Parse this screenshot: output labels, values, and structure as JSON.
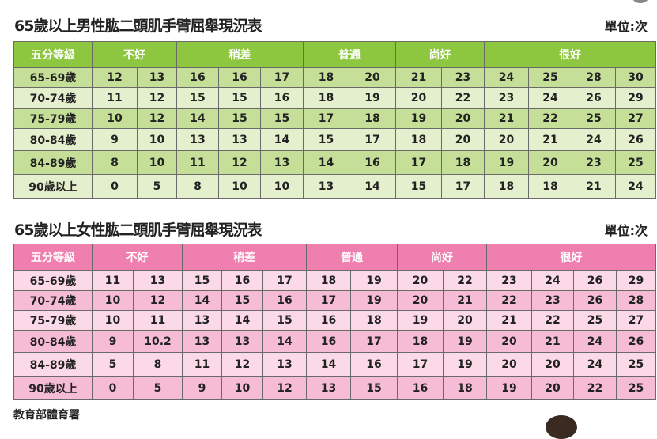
{
  "tables": [
    {
      "title": "65歲以上男性肱二頭肌手臂屈舉現況表",
      "unit": "單位:次",
      "theme": "green",
      "header": [
        "五分等級",
        "不好",
        "稍差",
        "普通",
        "尚好",
        "很好"
      ],
      "spans": [
        1,
        2,
        3,
        2,
        2,
        4
      ],
      "rows": [
        {
          "age": "65-69歲",
          "values": [
            "12",
            "13",
            "16",
            "16",
            "17",
            "18",
            "20",
            "21",
            "23",
            "24",
            "25",
            "28",
            "30"
          ]
        },
        {
          "age": "70-74歲",
          "values": [
            "11",
            "12",
            "15",
            "15",
            "16",
            "18",
            "19",
            "20",
            "22",
            "23",
            "24",
            "26",
            "29"
          ]
        },
        {
          "age": "75-79歲",
          "values": [
            "10",
            "12",
            "14",
            "15",
            "15",
            "17",
            "18",
            "19",
            "20",
            "21",
            "22",
            "25",
            "27"
          ]
        },
        {
          "age": "80-84歲",
          "values": [
            "9",
            "10",
            "13",
            "13",
            "14",
            "15",
            "17",
            "18",
            "20",
            "20",
            "21",
            "24",
            "26"
          ]
        },
        {
          "age": "84-89歲",
          "values": [
            "8",
            "10",
            "11",
            "12",
            "13",
            "14",
            "16",
            "17",
            "18",
            "19",
            "20",
            "23",
            "25"
          ]
        },
        {
          "age": "90歲以上",
          "values": [
            "0",
            "5",
            "8",
            "10",
            "10",
            "13",
            "14",
            "15",
            "17",
            "18",
            "18",
            "21",
            "24"
          ]
        }
      ]
    },
    {
      "title": "65歲以上女性肱二頭肌手臂屈舉現況表",
      "unit": "單位:次",
      "theme": "pink",
      "header": [
        "五分等級",
        "不好",
        "稍差",
        "普通",
        "尚好",
        "很好"
      ],
      "spans": [
        1,
        2,
        3,
        2,
        2,
        4
      ],
      "rows": [
        {
          "age": "65-69歲",
          "values": [
            "11",
            "13",
            "15",
            "16",
            "17",
            "18",
            "19",
            "20",
            "22",
            "23",
            "24",
            "26",
            "29"
          ]
        },
        {
          "age": "70-74歲",
          "values": [
            "10",
            "12",
            "14",
            "15",
            "16",
            "17",
            "19",
            "20",
            "21",
            "22",
            "23",
            "26",
            "28"
          ]
        },
        {
          "age": "75-79歲",
          "values": [
            "10",
            "11",
            "13",
            "14",
            "15",
            "16",
            "18",
            "19",
            "20",
            "21",
            "22",
            "25",
            "27"
          ]
        },
        {
          "age": "80-84歲",
          "values": [
            "9",
            "10.2",
            "13",
            "13",
            "14",
            "16",
            "17",
            "18",
            "19",
            "20",
            "21",
            "24",
            "26"
          ]
        },
        {
          "age": "84-89歲",
          "values": [
            "5",
            "8",
            "11",
            "12",
            "13",
            "14",
            "16",
            "17",
            "19",
            "20",
            "20",
            "24",
            "25"
          ]
        },
        {
          "age": "90歲以上",
          "values": [
            "0",
            "5",
            "9",
            "10",
            "12",
            "13",
            "15",
            "16",
            "18",
            "19",
            "20",
            "22",
            "25"
          ]
        }
      ]
    }
  ],
  "source": "教育部體育署"
}
